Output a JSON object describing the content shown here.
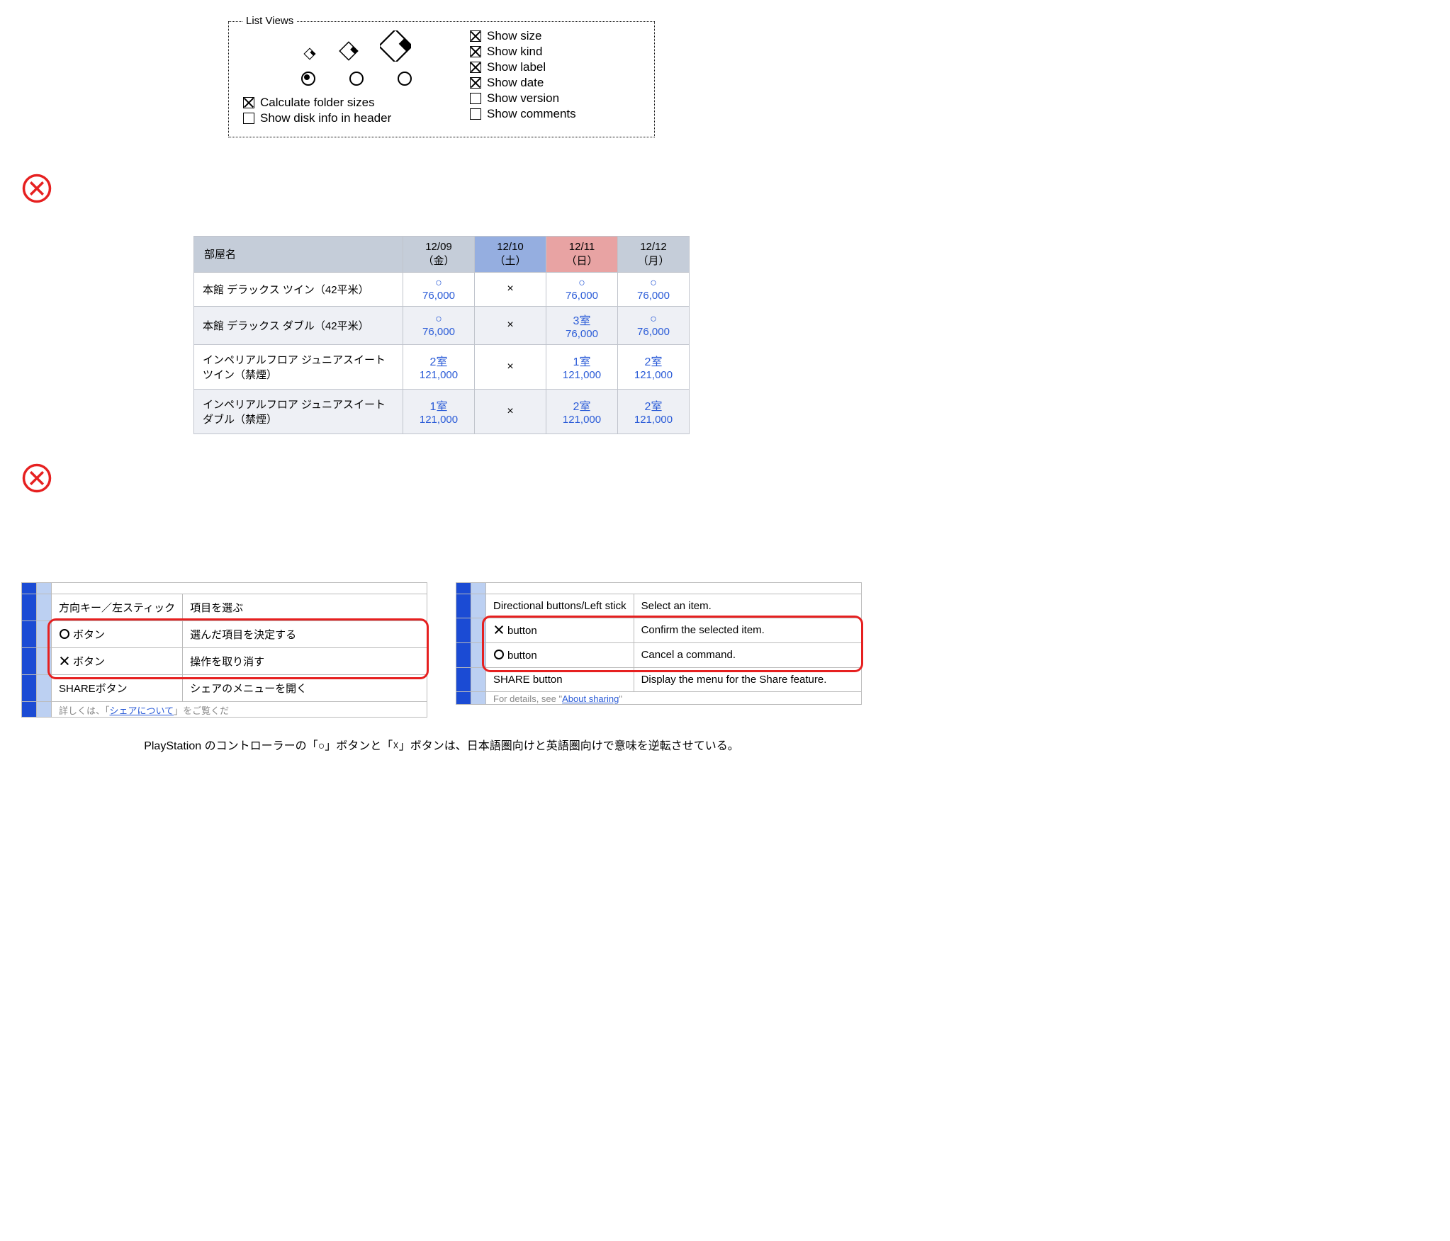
{
  "panel1": {
    "legend": "List Views",
    "radio_selected_index": 0,
    "left_checks": [
      {
        "label": "Calculate folder sizes",
        "checked": true
      },
      {
        "label": "Show disk info in header",
        "checked": false
      }
    ],
    "right_checks": [
      {
        "label": "Show size",
        "checked": true
      },
      {
        "label": "Show kind",
        "checked": true
      },
      {
        "label": "Show label",
        "checked": true
      },
      {
        "label": "Show date",
        "checked": true
      },
      {
        "label": "Show version",
        "checked": false
      },
      {
        "label": "Show comments",
        "checked": false
      }
    ]
  },
  "separator_color": "#e62020",
  "panel2": {
    "room_header": "部屋名",
    "dates": [
      {
        "date": "12/09",
        "day": "（金）",
        "type": "normal"
      },
      {
        "date": "12/10",
        "day": "（土）",
        "type": "sat"
      },
      {
        "date": "12/11",
        "day": "（日）",
        "type": "sun"
      },
      {
        "date": "12/12",
        "day": "（月）",
        "type": "normal"
      }
    ],
    "rows": [
      {
        "name": "本館 デラックス ツイン（42平米）",
        "cells": [
          {
            "avail": "○",
            "price": "76,000"
          },
          {
            "soldout": "×"
          },
          {
            "avail": "○",
            "price": "76,000"
          },
          {
            "avail": "○",
            "price": "76,000"
          }
        ]
      },
      {
        "name": "本館 デラックス ダブル（42平米）",
        "cells": [
          {
            "avail": "○",
            "price": "76,000"
          },
          {
            "soldout": "×"
          },
          {
            "avail": "3室",
            "price": "76,000"
          },
          {
            "avail": "○",
            "price": "76,000"
          }
        ]
      },
      {
        "name": "インペリアルフロア ジュニアスイート ツイン（禁煙）",
        "cells": [
          {
            "avail": "2室",
            "price": "121,000"
          },
          {
            "soldout": "×"
          },
          {
            "avail": "1室",
            "price": "121,000"
          },
          {
            "avail": "2室",
            "price": "121,000"
          }
        ]
      },
      {
        "name": "インペリアルフロア ジュニアスイート ダブル（禁煙）",
        "cells": [
          {
            "avail": "1室",
            "price": "121,000"
          },
          {
            "soldout": "×"
          },
          {
            "avail": "2室",
            "price": "121,000"
          },
          {
            "avail": "2室",
            "price": "121,000"
          }
        ]
      }
    ],
    "colors": {
      "header_bg": "#c5cdd9",
      "sat_bg": "#95aee0",
      "sun_bg": "#e8a3a3",
      "link": "#2a5bd7",
      "alt_bg": "#eef0f5",
      "border": "#c0c4cc"
    }
  },
  "panel3": {
    "jp": {
      "rows": [
        {
          "stripe": "blue",
          "light": "light",
          "label": "方向キー／左スティック",
          "desc": "項目を選ぶ",
          "sym": ""
        },
        {
          "stripe": "blue",
          "light": "light",
          "label": "ボタン",
          "desc": "選んだ項目を決定する",
          "sym": "circle"
        },
        {
          "stripe": "blue",
          "light": "light",
          "label": "ボタン",
          "desc": "操作を取り消す",
          "sym": "cross"
        },
        {
          "stripe": "blue",
          "light": "light",
          "label": "SHAREボタン",
          "desc": "シェアのメニューを開く",
          "sym": ""
        }
      ],
      "cut_bottom_left": "詳しくは、「",
      "cut_bottom_link": "シェアについて",
      "cut_bottom_right": "」をご覧くだ"
    },
    "en": {
      "rows": [
        {
          "stripe": "blue",
          "light": "light",
          "label": "Directional buttons/Left stick",
          "desc": "Select an item.",
          "sym": ""
        },
        {
          "stripe": "blue",
          "light": "light",
          "label": "button",
          "desc": "Confirm the selected item.",
          "sym": "cross"
        },
        {
          "stripe": "blue",
          "light": "light",
          "label": "button",
          "desc": "Cancel a command.",
          "sym": "circle"
        },
        {
          "stripe": "blue",
          "light": "light",
          "label": "SHARE button",
          "desc": "Display the menu for the Share feature.",
          "sym": ""
        }
      ],
      "cut_bottom_left": "For details, see \"",
      "cut_bottom_link": "About sharing",
      "cut_bottom_right": "\""
    },
    "highlight_color": "#e62020"
  },
  "caption": "PlayStation のコントローラーの「○」ボタンと「☓」ボタンは、日本語圏向けと英語圏向けで意味を逆転させている。"
}
